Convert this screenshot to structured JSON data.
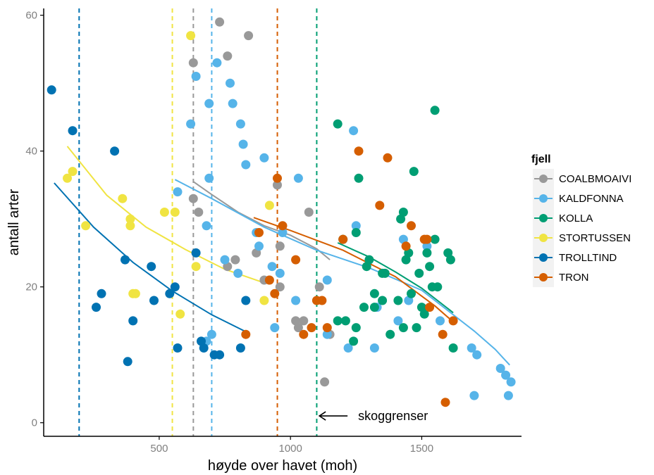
{
  "chart_data": {
    "type": "scatter",
    "xlabel": "høyde over havet (moh)",
    "ylabel": "antall arter",
    "xlim": [
      60,
      1880
    ],
    "ylim": [
      -2,
      61
    ],
    "xticks": [
      500,
      1000,
      1500
    ],
    "yticks": [
      0,
      20,
      40,
      60
    ],
    "grid": false,
    "legend": {
      "title": "fjell",
      "placement": "right"
    },
    "annotation": {
      "text": "skoggrenser",
      "arrow": "left",
      "at": [
        1110,
        1
      ]
    },
    "series": [
      {
        "name": "COALBMOAIVI",
        "color": "#999999",
        "treeline": 630,
        "points": [
          [
            730,
            59
          ],
          [
            840,
            57
          ],
          [
            630,
            53
          ],
          [
            760,
            54
          ],
          [
            630,
            33
          ],
          [
            650,
            31
          ],
          [
            790,
            24
          ],
          [
            760,
            23
          ],
          [
            870,
            25
          ],
          [
            900,
            21
          ],
          [
            950,
            35
          ],
          [
            960,
            26
          ],
          [
            960,
            20
          ],
          [
            1070,
            31
          ],
          [
            1020,
            15
          ],
          [
            1030,
            14
          ],
          [
            1050,
            15
          ],
          [
            1110,
            20
          ],
          [
            1150,
            13
          ],
          [
            1130,
            6
          ]
        ],
        "trend": [
          [
            630,
            35.5
          ],
          [
            700,
            33.6
          ],
          [
            800,
            31.0
          ],
          [
            900,
            29.0
          ],
          [
            1000,
            27.6
          ],
          [
            1100,
            25.6
          ],
          [
            1150,
            24.0
          ]
        ]
      },
      {
        "name": "KALDFONNA",
        "color": "#56B4E9",
        "treeline": 700,
        "points": [
          [
            620,
            44
          ],
          [
            640,
            51
          ],
          [
            690,
            47
          ],
          [
            720,
            53
          ],
          [
            770,
            50
          ],
          [
            780,
            47
          ],
          [
            810,
            44
          ],
          [
            820,
            41
          ],
          [
            830,
            38
          ],
          [
            870,
            28
          ],
          [
            880,
            26
          ],
          [
            900,
            39
          ],
          [
            930,
            23
          ],
          [
            960,
            22
          ],
          [
            970,
            28
          ],
          [
            1030,
            36
          ],
          [
            1020,
            18
          ],
          [
            570,
            34
          ],
          [
            680,
            29
          ],
          [
            690,
            36
          ],
          [
            750,
            24
          ],
          [
            800,
            22
          ],
          [
            940,
            14
          ],
          [
            1140,
            21
          ],
          [
            1240,
            43
          ],
          [
            1220,
            11
          ],
          [
            1250,
            29
          ],
          [
            1320,
            11
          ],
          [
            1330,
            17
          ],
          [
            1410,
            15
          ],
          [
            1430,
            27
          ],
          [
            1450,
            18
          ],
          [
            1520,
            26
          ],
          [
            1570,
            15
          ],
          [
            1690,
            11
          ],
          [
            1700,
            4
          ],
          [
            1800,
            8
          ],
          [
            1820,
            7
          ],
          [
            1840,
            6
          ],
          [
            1830,
            4
          ],
          [
            1710,
            10
          ],
          [
            680,
            12
          ],
          [
            700,
            13
          ],
          [
            1140,
            13
          ]
        ],
        "trend": [
          [
            560,
            35.8
          ],
          [
            700,
            33.0
          ],
          [
            900,
            28.8
          ],
          [
            1100,
            25.4
          ],
          [
            1300,
            22.8
          ],
          [
            1500,
            19.5
          ],
          [
            1600,
            16.5
          ],
          [
            1700,
            13.5
          ],
          [
            1780,
            10.8
          ],
          [
            1835,
            8.5
          ]
        ]
      },
      {
        "name": "KOLLA",
        "color": "#009E73",
        "treeline": 1100,
        "points": [
          [
            1180,
            44
          ],
          [
            1550,
            46
          ],
          [
            1260,
            36
          ],
          [
            1470,
            37
          ],
          [
            1200,
            27
          ],
          [
            1250,
            28
          ],
          [
            1290,
            23
          ],
          [
            1280,
            17
          ],
          [
            1300,
            24
          ],
          [
            1320,
            17
          ],
          [
            1350,
            22
          ],
          [
            1360,
            22
          ],
          [
            1380,
            13
          ],
          [
            1410,
            18
          ],
          [
            1420,
            30
          ],
          [
            1430,
            31
          ],
          [
            1440,
            24
          ],
          [
            1450,
            25
          ],
          [
            1460,
            19
          ],
          [
            1480,
            14
          ],
          [
            1490,
            22
          ],
          [
            1500,
            17
          ],
          [
            1510,
            16
          ],
          [
            1520,
            25
          ],
          [
            1530,
            23
          ],
          [
            1540,
            20
          ],
          [
            1550,
            27
          ],
          [
            1560,
            20
          ],
          [
            1600,
            25
          ],
          [
            1610,
            24
          ],
          [
            1620,
            11
          ],
          [
            1250,
            14
          ],
          [
            1180,
            15
          ],
          [
            1210,
            15
          ],
          [
            1240,
            12
          ],
          [
            1320,
            19
          ],
          [
            1350,
            18
          ],
          [
            1430,
            14
          ]
        ],
        "trend": [
          [
            1180,
            26.5
          ],
          [
            1300,
            24.4
          ],
          [
            1400,
            22.2
          ],
          [
            1500,
            19.8
          ],
          [
            1560,
            18.0
          ],
          [
            1620,
            16.2
          ]
        ]
      },
      {
        "name": "STORTUSSEN",
        "color": "#F0E442",
        "treeline": 550,
        "points": [
          [
            150,
            36
          ],
          [
            170,
            37
          ],
          [
            220,
            29
          ],
          [
            360,
            33
          ],
          [
            390,
            30
          ],
          [
            390,
            29
          ],
          [
            400,
            19
          ],
          [
            410,
            19
          ],
          [
            520,
            31
          ],
          [
            560,
            31
          ],
          [
            580,
            16
          ],
          [
            620,
            57
          ],
          [
            640,
            23
          ],
          [
            920,
            32
          ],
          [
            900,
            18
          ]
        ],
        "trend": [
          [
            150,
            40.7
          ],
          [
            300,
            33.5
          ],
          [
            450,
            28.8
          ],
          [
            600,
            25.5
          ],
          [
            750,
            22.6
          ],
          [
            900,
            20.6
          ]
        ]
      },
      {
        "name": "TROLLTIND",
        "color": "#0072B2",
        "treeline": 195,
        "points": [
          [
            90,
            49
          ],
          [
            170,
            43
          ],
          [
            330,
            40
          ],
          [
            260,
            17
          ],
          [
            280,
            19
          ],
          [
            370,
            24
          ],
          [
            380,
            9
          ],
          [
            400,
            15
          ],
          [
            470,
            23
          ],
          [
            480,
            18
          ],
          [
            540,
            19
          ],
          [
            560,
            20
          ],
          [
            570,
            11
          ],
          [
            640,
            25
          ],
          [
            660,
            12
          ],
          [
            670,
            11
          ],
          [
            710,
            10
          ],
          [
            730,
            10
          ],
          [
            810,
            11
          ],
          [
            830,
            18
          ]
        ],
        "trend": [
          [
            100,
            35.3
          ],
          [
            250,
            28.8
          ],
          [
            400,
            23.6
          ],
          [
            550,
            19.4
          ],
          [
            700,
            15.9
          ],
          [
            830,
            13.4
          ]
        ]
      },
      {
        "name": "TRON",
        "color": "#D55E00",
        "treeline": 950,
        "points": [
          [
            950,
            36
          ],
          [
            970,
            29
          ],
          [
            880,
            28
          ],
          [
            920,
            21
          ],
          [
            940,
            19
          ],
          [
            1020,
            24
          ],
          [
            1050,
            13
          ],
          [
            1080,
            14
          ],
          [
            1100,
            18
          ],
          [
            1140,
            14
          ],
          [
            1120,
            18
          ],
          [
            1200,
            27
          ],
          [
            1260,
            40
          ],
          [
            1370,
            39
          ],
          [
            1340,
            32
          ],
          [
            1440,
            26
          ],
          [
            1460,
            29
          ],
          [
            1510,
            27
          ],
          [
            1520,
            27
          ],
          [
            1530,
            17
          ],
          [
            1580,
            13
          ],
          [
            1590,
            3
          ],
          [
            1620,
            15
          ],
          [
            830,
            13
          ]
        ],
        "trend": [
          [
            860,
            30.2
          ],
          [
            1000,
            28.3
          ],
          [
            1200,
            25.4
          ],
          [
            1400,
            21.5
          ],
          [
            1550,
            17.2
          ],
          [
            1630,
            14.5
          ]
        ]
      }
    ]
  }
}
